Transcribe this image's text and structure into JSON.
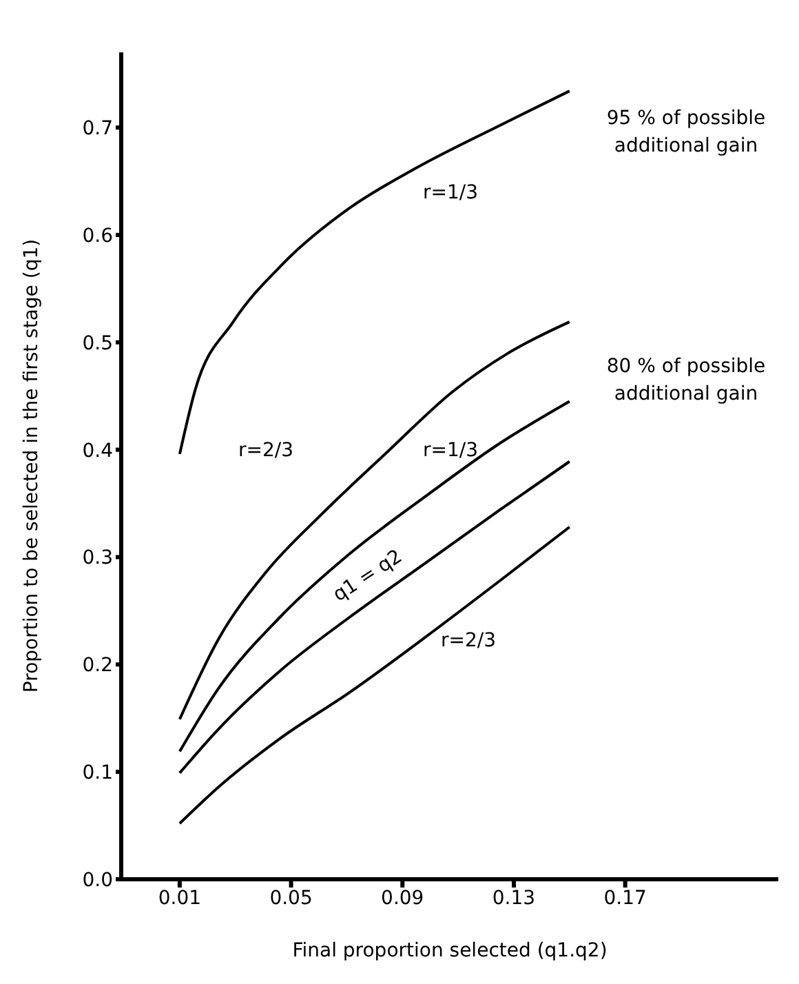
{
  "chart_data": {
    "type": "line",
    "xlabel": "Final proportion selected (q1.q2)",
    "ylabel": "Proportion to be selected in the first stage (q1)",
    "xlim": [
      -0.011,
      0.225
    ],
    "xticks": [
      0.01,
      0.05,
      0.09,
      0.13,
      0.17
    ],
    "ylim": [
      0,
      0.77
    ],
    "yticks": [
      {
        "value": 0,
        "label": "0.0"
      },
      0.1,
      0.2,
      0.3,
      0.4,
      0.5,
      0.6,
      0.7
    ],
    "grid": false,
    "legend": false,
    "marker": "none",
    "line_style": "solid",
    "series": [
      {
        "color": "#000000",
        "x": [
          0.01,
          0.0156,
          0.0292,
          0.0474,
          0.071,
          0.0947,
          0.125,
          0.15
        ],
        "values": [
          0.396,
          0.456,
          0.519,
          0.574,
          0.625,
          0.662,
          0.702,
          0.734
        ]
      },
      {
        "color": "#000000",
        "x": [
          0.01,
          0.024,
          0.041,
          0.061,
          0.085,
          0.108,
          0.128,
          0.15
        ],
        "values": [
          0.149,
          0.224,
          0.286,
          0.34,
          0.399,
          0.454,
          0.49,
          0.519
        ]
      },
      {
        "color": "#000000",
        "x": [
          0.01,
          0.024,
          0.046,
          0.071,
          0.098,
          0.125,
          0.15
        ],
        "values": [
          0.119,
          0.178,
          0.244,
          0.303,
          0.356,
          0.406,
          0.445
        ]
      },
      {
        "color": "#000000",
        "x": [
          0.01,
          0.024,
          0.046,
          0.071,
          0.098,
          0.125,
          0.15
        ],
        "values": [
          0.099,
          0.14,
          0.194,
          0.244,
          0.294,
          0.344,
          0.389
        ]
      },
      {
        "color": "#000000",
        "x": [
          0.01,
          0.024,
          0.046,
          0.071,
          0.098,
          0.125,
          0.15
        ],
        "values": [
          0.052,
          0.086,
          0.131,
          0.174,
          0.225,
          0.278,
          0.328
        ]
      }
    ],
    "annotations": [
      "r=1/3",
      "r=2/3",
      "r=1/3",
      "r=2/3",
      "q1 = q2",
      "95 % of possible additional gain",
      "80 % of possible additional gain"
    ]
  }
}
